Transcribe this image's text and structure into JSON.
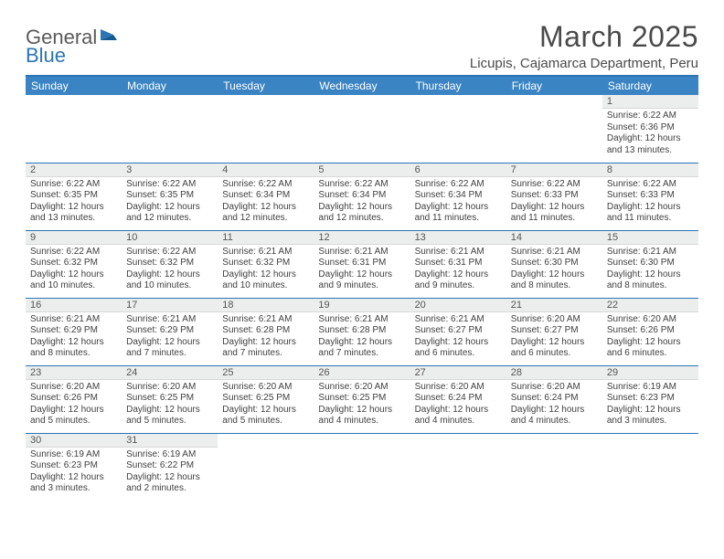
{
  "logo": {
    "text1": "General",
    "text2": "Blue"
  },
  "title": "March 2025",
  "location": "Licupis, Cajamarca Department, Peru",
  "colors": {
    "header_bg": "#3a84c3",
    "divider": "#2b75b3",
    "day_num_bg": "#eceded",
    "text": "#404040"
  },
  "weekdays": [
    "Sunday",
    "Monday",
    "Tuesday",
    "Wednesday",
    "Thursday",
    "Friday",
    "Saturday"
  ],
  "weeks": [
    [
      null,
      null,
      null,
      null,
      null,
      null,
      {
        "n": "1",
        "sr": "Sunrise: 6:22 AM",
        "ss": "Sunset: 6:36 PM",
        "dl": "Daylight: 12 hours and 13 minutes."
      }
    ],
    [
      {
        "n": "2",
        "sr": "Sunrise: 6:22 AM",
        "ss": "Sunset: 6:35 PM",
        "dl": "Daylight: 12 hours and 13 minutes."
      },
      {
        "n": "3",
        "sr": "Sunrise: 6:22 AM",
        "ss": "Sunset: 6:35 PM",
        "dl": "Daylight: 12 hours and 12 minutes."
      },
      {
        "n": "4",
        "sr": "Sunrise: 6:22 AM",
        "ss": "Sunset: 6:34 PM",
        "dl": "Daylight: 12 hours and 12 minutes."
      },
      {
        "n": "5",
        "sr": "Sunrise: 6:22 AM",
        "ss": "Sunset: 6:34 PM",
        "dl": "Daylight: 12 hours and 12 minutes."
      },
      {
        "n": "6",
        "sr": "Sunrise: 6:22 AM",
        "ss": "Sunset: 6:34 PM",
        "dl": "Daylight: 12 hours and 11 minutes."
      },
      {
        "n": "7",
        "sr": "Sunrise: 6:22 AM",
        "ss": "Sunset: 6:33 PM",
        "dl": "Daylight: 12 hours and 11 minutes."
      },
      {
        "n": "8",
        "sr": "Sunrise: 6:22 AM",
        "ss": "Sunset: 6:33 PM",
        "dl": "Daylight: 12 hours and 11 minutes."
      }
    ],
    [
      {
        "n": "9",
        "sr": "Sunrise: 6:22 AM",
        "ss": "Sunset: 6:32 PM",
        "dl": "Daylight: 12 hours and 10 minutes."
      },
      {
        "n": "10",
        "sr": "Sunrise: 6:22 AM",
        "ss": "Sunset: 6:32 PM",
        "dl": "Daylight: 12 hours and 10 minutes."
      },
      {
        "n": "11",
        "sr": "Sunrise: 6:21 AM",
        "ss": "Sunset: 6:32 PM",
        "dl": "Daylight: 12 hours and 10 minutes."
      },
      {
        "n": "12",
        "sr": "Sunrise: 6:21 AM",
        "ss": "Sunset: 6:31 PM",
        "dl": "Daylight: 12 hours and 9 minutes."
      },
      {
        "n": "13",
        "sr": "Sunrise: 6:21 AM",
        "ss": "Sunset: 6:31 PM",
        "dl": "Daylight: 12 hours and 9 minutes."
      },
      {
        "n": "14",
        "sr": "Sunrise: 6:21 AM",
        "ss": "Sunset: 6:30 PM",
        "dl": "Daylight: 12 hours and 8 minutes."
      },
      {
        "n": "15",
        "sr": "Sunrise: 6:21 AM",
        "ss": "Sunset: 6:30 PM",
        "dl": "Daylight: 12 hours and 8 minutes."
      }
    ],
    [
      {
        "n": "16",
        "sr": "Sunrise: 6:21 AM",
        "ss": "Sunset: 6:29 PM",
        "dl": "Daylight: 12 hours and 8 minutes."
      },
      {
        "n": "17",
        "sr": "Sunrise: 6:21 AM",
        "ss": "Sunset: 6:29 PM",
        "dl": "Daylight: 12 hours and 7 minutes."
      },
      {
        "n": "18",
        "sr": "Sunrise: 6:21 AM",
        "ss": "Sunset: 6:28 PM",
        "dl": "Daylight: 12 hours and 7 minutes."
      },
      {
        "n": "19",
        "sr": "Sunrise: 6:21 AM",
        "ss": "Sunset: 6:28 PM",
        "dl": "Daylight: 12 hours and 7 minutes."
      },
      {
        "n": "20",
        "sr": "Sunrise: 6:21 AM",
        "ss": "Sunset: 6:27 PM",
        "dl": "Daylight: 12 hours and 6 minutes."
      },
      {
        "n": "21",
        "sr": "Sunrise: 6:20 AM",
        "ss": "Sunset: 6:27 PM",
        "dl": "Daylight: 12 hours and 6 minutes."
      },
      {
        "n": "22",
        "sr": "Sunrise: 6:20 AM",
        "ss": "Sunset: 6:26 PM",
        "dl": "Daylight: 12 hours and 6 minutes."
      }
    ],
    [
      {
        "n": "23",
        "sr": "Sunrise: 6:20 AM",
        "ss": "Sunset: 6:26 PM",
        "dl": "Daylight: 12 hours and 5 minutes."
      },
      {
        "n": "24",
        "sr": "Sunrise: 6:20 AM",
        "ss": "Sunset: 6:25 PM",
        "dl": "Daylight: 12 hours and 5 minutes."
      },
      {
        "n": "25",
        "sr": "Sunrise: 6:20 AM",
        "ss": "Sunset: 6:25 PM",
        "dl": "Daylight: 12 hours and 5 minutes."
      },
      {
        "n": "26",
        "sr": "Sunrise: 6:20 AM",
        "ss": "Sunset: 6:25 PM",
        "dl": "Daylight: 12 hours and 4 minutes."
      },
      {
        "n": "27",
        "sr": "Sunrise: 6:20 AM",
        "ss": "Sunset: 6:24 PM",
        "dl": "Daylight: 12 hours and 4 minutes."
      },
      {
        "n": "28",
        "sr": "Sunrise: 6:20 AM",
        "ss": "Sunset: 6:24 PM",
        "dl": "Daylight: 12 hours and 4 minutes."
      },
      {
        "n": "29",
        "sr": "Sunrise: 6:19 AM",
        "ss": "Sunset: 6:23 PM",
        "dl": "Daylight: 12 hours and 3 minutes."
      }
    ],
    [
      {
        "n": "30",
        "sr": "Sunrise: 6:19 AM",
        "ss": "Sunset: 6:23 PM",
        "dl": "Daylight: 12 hours and 3 minutes."
      },
      {
        "n": "31",
        "sr": "Sunrise: 6:19 AM",
        "ss": "Sunset: 6:22 PM",
        "dl": "Daylight: 12 hours and 2 minutes."
      },
      null,
      null,
      null,
      null,
      null
    ]
  ]
}
